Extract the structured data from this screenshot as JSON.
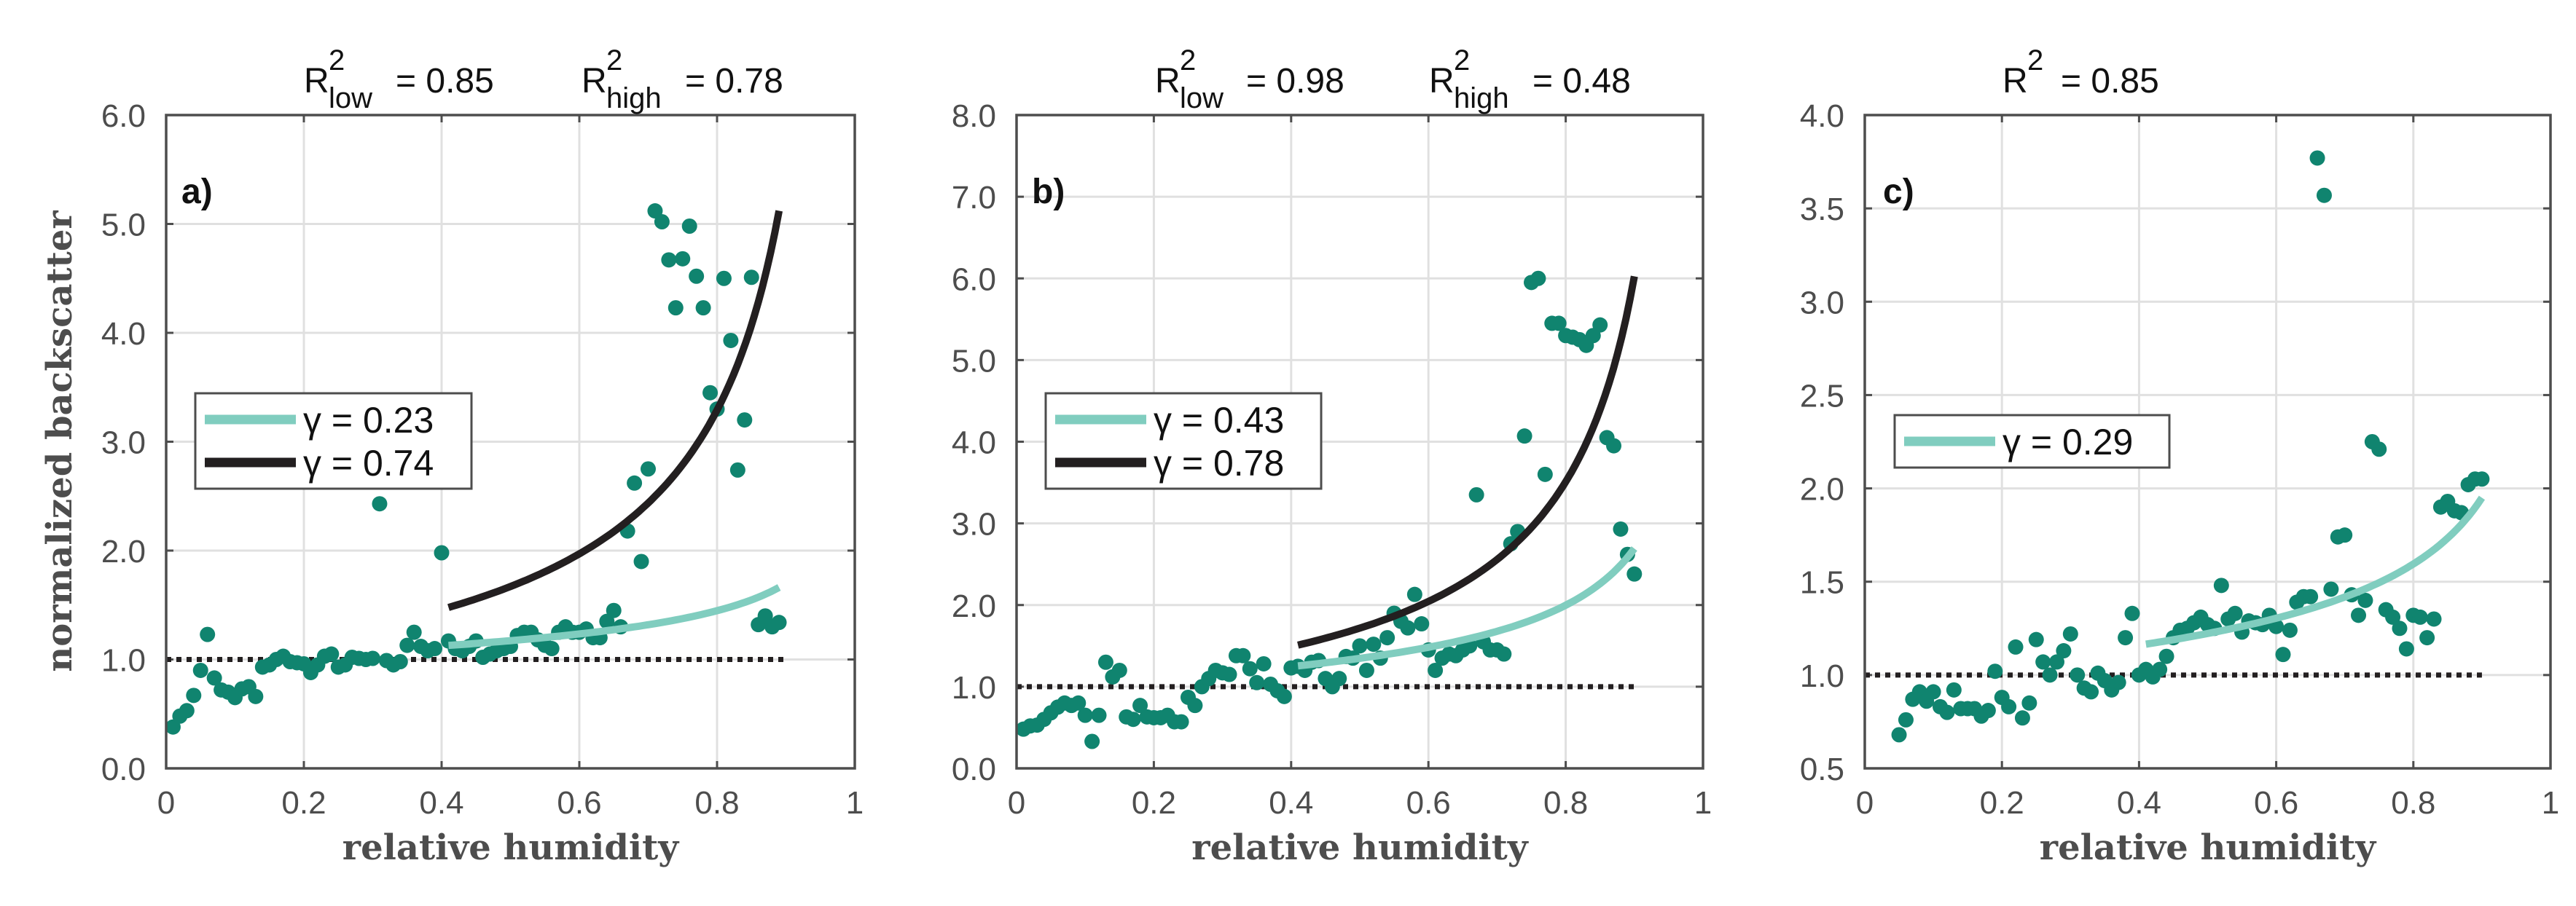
{
  "colors": {
    "points": "#10846f",
    "fit_low": "#80cdbf",
    "fit_high": "#231f20",
    "reference": "#231f20",
    "axes": "#4d4d4d",
    "grid": "#e0e0e0"
  },
  "chart_data": [
    {
      "type": "scatter",
      "panel_label": "a)",
      "title": [
        {
          "r": "R",
          "sup": "2",
          "sub": "low",
          "value": "= 0.85"
        },
        {
          "r": "R",
          "sup": "2",
          "sub": "high",
          "value": "= 0.78"
        }
      ],
      "xlabel": "relative humidity",
      "ylabel": "normalized backscatter",
      "xlim": [
        0,
        1
      ],
      "ylim": [
        0,
        6
      ],
      "xticks": [
        0,
        0.2,
        0.4,
        0.6,
        0.8,
        1
      ],
      "xtick_labels": [
        "0",
        "0.2",
        "0.4",
        "0.6",
        "0.8",
        "1"
      ],
      "yticks": [
        0,
        1,
        2,
        3,
        4,
        5,
        6
      ],
      "ytick_labels": [
        "0.0",
        "1.0",
        "2.0",
        "3.0",
        "4.0",
        "5.0",
        "6.0"
      ],
      "grid": true,
      "legend": {
        "placement": "center-left",
        "entries": [
          {
            "label": "γ = 0.23",
            "series": "fit_low"
          },
          {
            "label": "γ = 0.74",
            "series": "fit_high"
          }
        ]
      },
      "reference_line": {
        "y": 1.0,
        "x_range": [
          0,
          0.9
        ],
        "style": "dotted"
      },
      "fits": [
        {
          "id": "fit_low",
          "gamma": 0.23,
          "x_range": [
            0.41,
            0.89
          ]
        },
        {
          "id": "fit_high",
          "gamma": 0.74,
          "x_range": [
            0.41,
            0.89
          ]
        }
      ],
      "points": {
        "x": [
          0.01,
          0.02,
          0.03,
          0.04,
          0.05,
          0.06,
          0.07,
          0.08,
          0.09,
          0.1,
          0.11,
          0.12,
          0.13,
          0.14,
          0.15,
          0.16,
          0.17,
          0.18,
          0.19,
          0.2,
          0.21,
          0.22,
          0.23,
          0.24,
          0.25,
          0.26,
          0.27,
          0.28,
          0.29,
          0.3,
          0.31,
          0.32,
          0.33,
          0.34,
          0.35,
          0.36,
          0.37,
          0.38,
          0.39,
          0.4,
          0.41,
          0.42,
          0.43,
          0.44,
          0.45,
          0.46,
          0.47,
          0.48,
          0.49,
          0.5,
          0.51,
          0.52,
          0.53,
          0.54,
          0.55,
          0.56,
          0.57,
          0.58,
          0.59,
          0.6,
          0.61,
          0.62,
          0.63,
          0.64,
          0.65,
          0.66,
          0.67,
          0.68,
          0.69,
          0.7,
          0.71,
          0.72,
          0.73,
          0.74,
          0.75,
          0.76,
          0.77,
          0.78,
          0.79,
          0.8,
          0.81,
          0.82,
          0.83,
          0.84,
          0.85,
          0.86,
          0.87,
          0.88,
          0.89
        ],
        "y": [
          0.38,
          0.48,
          0.53,
          0.67,
          0.9,
          1.23,
          0.83,
          0.72,
          0.7,
          0.65,
          0.73,
          0.75,
          0.66,
          0.93,
          0.95,
          1.0,
          1.03,
          0.98,
          0.97,
          0.96,
          0.88,
          0.95,
          1.03,
          1.05,
          0.93,
          0.95,
          1.02,
          1.01,
          1.0,
          1.01,
          2.43,
          0.99,
          0.95,
          0.98,
          1.13,
          1.25,
          1.12,
          1.08,
          1.1,
          1.98,
          1.17,
          1.1,
          1.08,
          1.12,
          1.17,
          1.02,
          1.05,
          1.08,
          1.1,
          1.12,
          1.22,
          1.25,
          1.25,
          1.18,
          1.13,
          1.1,
          1.25,
          1.3,
          1.25,
          1.25,
          1.28,
          1.2,
          1.2,
          1.35,
          1.45,
          1.3,
          2.18,
          2.62,
          1.9,
          2.75,
          5.12,
          5.02,
          4.67,
          4.23,
          4.68,
          4.98,
          4.52,
          4.23,
          3.45,
          3.3,
          4.5,
          3.93,
          2.74,
          3.2,
          4.51,
          1.32,
          1.4,
          1.3,
          1.34
        ]
      }
    },
    {
      "type": "scatter",
      "panel_label": "b)",
      "title": [
        {
          "r": "R",
          "sup": "2",
          "sub": "low",
          "value": "= 0.98"
        },
        {
          "r": "R",
          "sup": "2",
          "sub": "high",
          "value": "= 0.48"
        }
      ],
      "xlabel": "relative humidity",
      "xlim": [
        0,
        1
      ],
      "ylim": [
        0,
        8
      ],
      "xticks": [
        0,
        0.2,
        0.4,
        0.6,
        0.8,
        1
      ],
      "xtick_labels": [
        "0",
        "0.2",
        "0.4",
        "0.6",
        "0.8",
        "1"
      ],
      "yticks": [
        0,
        1,
        2,
        3,
        4,
        5,
        6,
        7,
        8
      ],
      "ytick_labels": [
        "0.0",
        "1.0",
        "2.0",
        "3.0",
        "4.0",
        "5.0",
        "6.0",
        "7.0",
        "8.0"
      ],
      "grid": true,
      "legend": {
        "placement": "center-left",
        "entries": [
          {
            "label": "γ = 0.43",
            "series": "fit_low"
          },
          {
            "label": "γ = 0.78",
            "series": "fit_high"
          }
        ]
      },
      "reference_line": {
        "y": 1.0,
        "x_range": [
          0,
          0.9
        ],
        "style": "dotted"
      },
      "fits": [
        {
          "id": "fit_low",
          "gamma": 0.43,
          "x_range": [
            0.41,
            0.9
          ]
        },
        {
          "id": "fit_high",
          "gamma": 0.78,
          "x_range": [
            0.41,
            0.9
          ]
        }
      ],
      "points": {
        "x": [
          0.01,
          0.02,
          0.03,
          0.04,
          0.05,
          0.06,
          0.07,
          0.08,
          0.09,
          0.1,
          0.11,
          0.12,
          0.13,
          0.14,
          0.15,
          0.16,
          0.17,
          0.18,
          0.19,
          0.2,
          0.21,
          0.22,
          0.23,
          0.24,
          0.25,
          0.26,
          0.27,
          0.28,
          0.29,
          0.3,
          0.31,
          0.32,
          0.33,
          0.34,
          0.35,
          0.36,
          0.37,
          0.38,
          0.39,
          0.4,
          0.41,
          0.42,
          0.43,
          0.44,
          0.45,
          0.46,
          0.47,
          0.48,
          0.49,
          0.5,
          0.51,
          0.52,
          0.53,
          0.54,
          0.55,
          0.56,
          0.57,
          0.58,
          0.59,
          0.6,
          0.61,
          0.62,
          0.63,
          0.64,
          0.65,
          0.66,
          0.67,
          0.68,
          0.69,
          0.7,
          0.71,
          0.72,
          0.73,
          0.74,
          0.75,
          0.76,
          0.77,
          0.78,
          0.79,
          0.8,
          0.81,
          0.82,
          0.83,
          0.84,
          0.85,
          0.86,
          0.87,
          0.88,
          0.89,
          0.9
        ],
        "y": [
          0.48,
          0.52,
          0.53,
          0.6,
          0.68,
          0.75,
          0.8,
          0.77,
          0.8,
          0.65,
          0.33,
          0.65,
          1.3,
          1.12,
          1.2,
          0.63,
          0.6,
          0.77,
          0.63,
          0.62,
          0.62,
          0.65,
          0.57,
          0.57,
          0.87,
          0.77,
          1.0,
          1.1,
          1.2,
          1.17,
          1.15,
          1.38,
          1.38,
          1.22,
          1.05,
          1.28,
          1.03,
          0.95,
          0.88,
          1.23,
          1.25,
          1.2,
          1.3,
          1.32,
          1.1,
          1.0,
          1.1,
          1.37,
          1.35,
          1.5,
          1.2,
          1.52,
          1.35,
          1.6,
          1.9,
          1.8,
          1.72,
          2.13,
          1.77,
          1.45,
          1.2,
          1.35,
          1.4,
          1.38,
          1.45,
          1.5,
          3.35,
          1.55,
          1.45,
          1.45,
          1.4,
          2.75,
          2.9,
          4.07,
          5.95,
          6.0,
          3.6,
          5.45,
          5.45,
          5.3,
          5.28,
          5.25,
          5.18,
          5.3,
          5.43,
          4.05,
          3.95,
          2.93,
          2.62,
          2.38
        ]
      }
    },
    {
      "type": "scatter",
      "panel_label": "c)",
      "title": [
        {
          "r": "R",
          "sup": "2",
          "sub": "",
          "value": "= 0.85"
        }
      ],
      "xlabel": "relative humidity",
      "xlim": [
        0,
        1
      ],
      "ylim": [
        0.5,
        4
      ],
      "xticks": [
        0,
        0.2,
        0.4,
        0.6,
        0.8,
        1
      ],
      "xtick_labels": [
        "0",
        "0.2",
        "0.4",
        "0.6",
        "0.8",
        "1"
      ],
      "yticks": [
        0.5,
        1,
        1.5,
        2,
        2.5,
        3,
        3.5,
        4
      ],
      "ytick_labels": [
        "0.5",
        "1.0",
        "1.5",
        "2.0",
        "2.5",
        "3.0",
        "3.5",
        "4.0"
      ],
      "grid": true,
      "legend": {
        "placement": "center-left",
        "entries": [
          {
            "label": "γ = 0.29",
            "series": "fit_low"
          }
        ]
      },
      "reference_line": {
        "y": 1.0,
        "x_range": [
          0,
          0.9
        ],
        "style": "dotted"
      },
      "fits": [
        {
          "id": "fit_low",
          "gamma": 0.29,
          "x_range": [
            0.41,
            0.9
          ]
        }
      ],
      "points": {
        "x": [
          0.05,
          0.06,
          0.07,
          0.08,
          0.09,
          0.1,
          0.11,
          0.12,
          0.13,
          0.14,
          0.15,
          0.16,
          0.17,
          0.18,
          0.19,
          0.2,
          0.21,
          0.22,
          0.23,
          0.24,
          0.25,
          0.26,
          0.27,
          0.28,
          0.29,
          0.3,
          0.31,
          0.32,
          0.33,
          0.34,
          0.35,
          0.36,
          0.37,
          0.38,
          0.39,
          0.4,
          0.41,
          0.42,
          0.43,
          0.44,
          0.45,
          0.46,
          0.47,
          0.48,
          0.49,
          0.5,
          0.51,
          0.52,
          0.53,
          0.54,
          0.55,
          0.56,
          0.57,
          0.58,
          0.59,
          0.6,
          0.61,
          0.62,
          0.63,
          0.64,
          0.65,
          0.66,
          0.67,
          0.68,
          0.69,
          0.7,
          0.71,
          0.72,
          0.73,
          0.74,
          0.75,
          0.76,
          0.77,
          0.78,
          0.79,
          0.8,
          0.81,
          0.82,
          0.83,
          0.84,
          0.85,
          0.86,
          0.87,
          0.88,
          0.89,
          0.9
        ],
        "y": [
          0.68,
          0.76,
          0.87,
          0.91,
          0.86,
          0.91,
          0.83,
          0.8,
          0.92,
          0.82,
          0.82,
          0.82,
          0.78,
          0.81,
          1.02,
          0.88,
          0.83,
          1.15,
          0.77,
          0.85,
          1.19,
          1.07,
          1.0,
          1.07,
          1.13,
          1.22,
          1.0,
          0.93,
          0.91,
          1.01,
          0.97,
          0.92,
          0.96,
          1.2,
          1.33,
          1.0,
          1.03,
          0.99,
          1.03,
          1.1,
          1.2,
          1.24,
          1.25,
          1.28,
          1.31,
          1.27,
          1.25,
          1.48,
          1.3,
          1.33,
          1.23,
          1.29,
          1.28,
          1.27,
          1.32,
          1.26,
          1.11,
          1.24,
          1.39,
          1.42,
          1.42,
          3.77,
          3.57,
          1.46,
          1.74,
          1.75,
          1.43,
          1.32,
          1.4,
          2.25,
          2.21,
          1.35,
          1.31,
          1.25,
          1.14,
          1.32,
          1.31,
          1.2,
          1.3,
          1.9,
          1.93,
          1.88,
          1.87,
          2.02,
          2.05,
          2.05
        ]
      }
    }
  ]
}
